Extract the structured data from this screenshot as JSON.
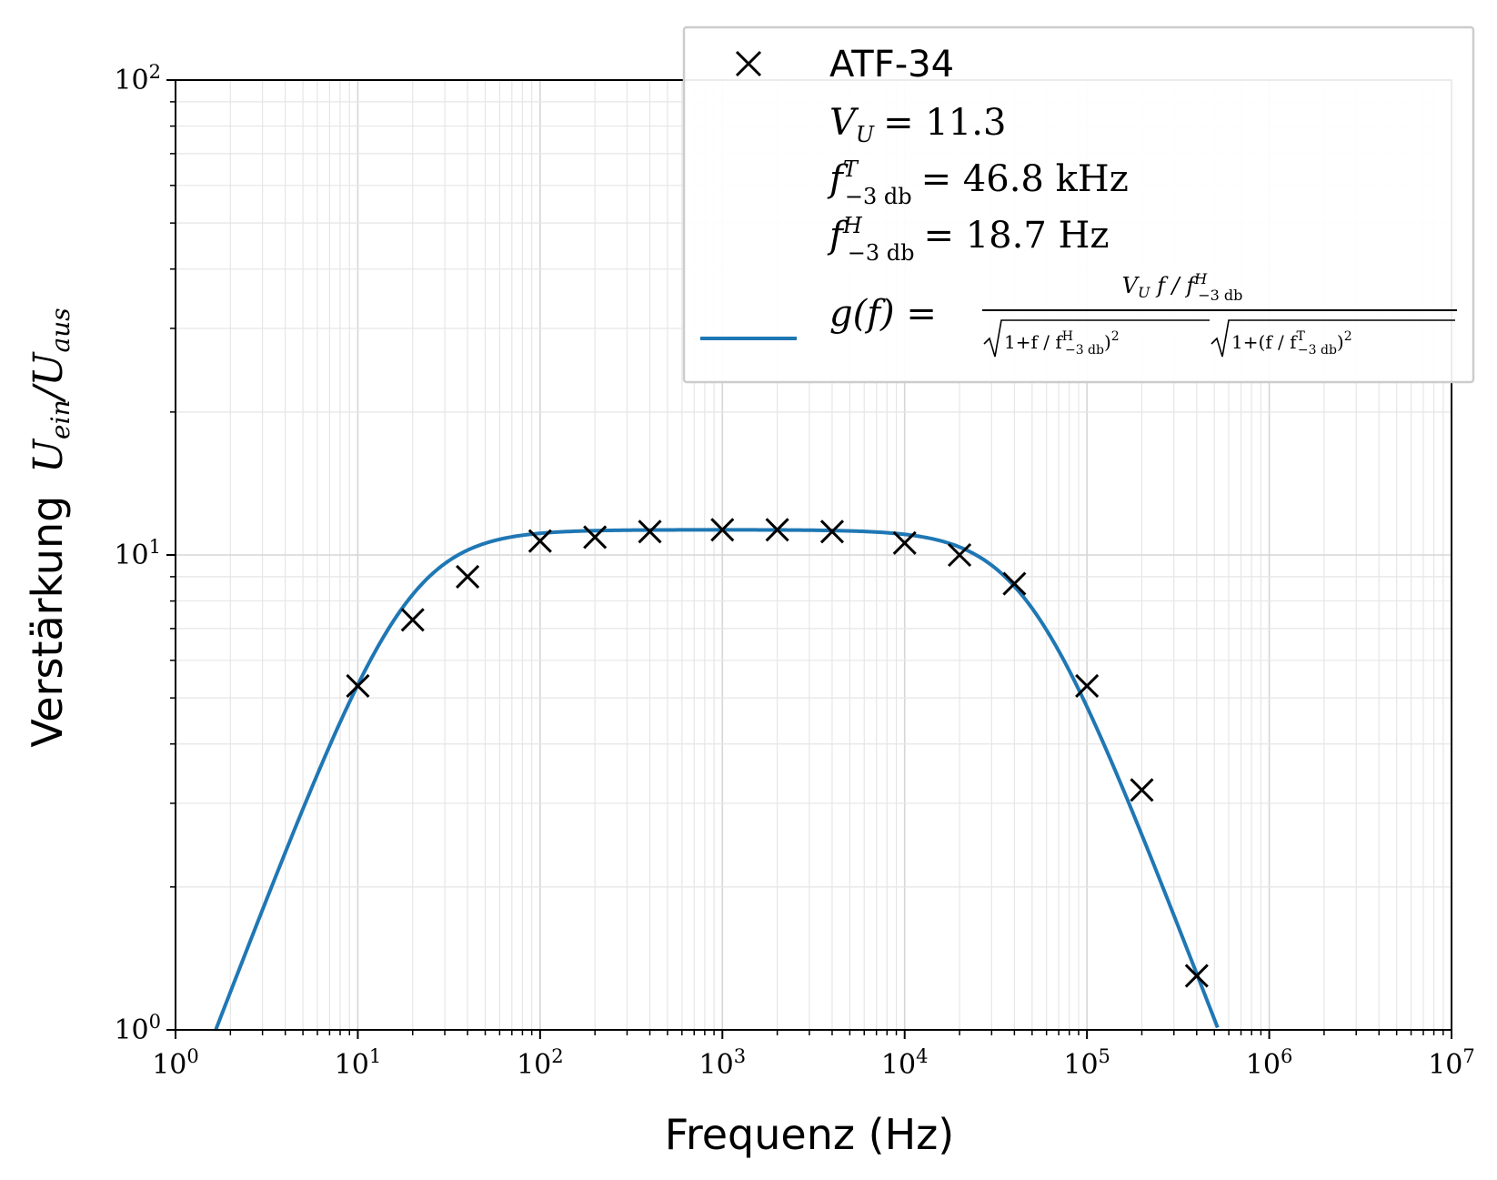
{
  "chart_data": {
    "type": "scatter",
    "xscale": "log",
    "yscale": "log",
    "xlim": [
      1,
      10000000
    ],
    "ylim": [
      1,
      100
    ],
    "grid": "major and minor",
    "legend_position": "top-right",
    "xlabel": "Frequenz (Hz)",
    "ylabel_prefix": "Verstärkung",
    "ylabel_math": "U_ein/U_aus",
    "x_tick_values": [
      1,
      10,
      100,
      1000,
      10000,
      100000,
      1000000,
      10000000
    ],
    "x_tick_labels": [
      {
        "base": "10",
        "exp": "0"
      },
      {
        "base": "10",
        "exp": "1"
      },
      {
        "base": "10",
        "exp": "2"
      },
      {
        "base": "10",
        "exp": "3"
      },
      {
        "base": "10",
        "exp": "4"
      },
      {
        "base": "10",
        "exp": "5"
      },
      {
        "base": "10",
        "exp": "6"
      },
      {
        "base": "10",
        "exp": "7"
      }
    ],
    "y_tick_values": [
      1,
      10,
      100
    ],
    "y_tick_labels": [
      {
        "base": "10",
        "exp": "0"
      },
      {
        "base": "10",
        "exp": "1"
      },
      {
        "base": "10",
        "exp": "2"
      }
    ],
    "series": [
      {
        "name": "ATF-34",
        "kind": "scatter",
        "marker": "x",
        "color": "#000000",
        "x": [
          10,
          20,
          40,
          100,
          200,
          400,
          1000,
          2000,
          4000,
          10000,
          20000,
          40000,
          100000,
          200000,
          400000
        ],
        "y": [
          5.3,
          7.3,
          9.0,
          10.7,
          10.9,
          11.2,
          11.3,
          11.3,
          11.2,
          10.6,
          10.0,
          8.7,
          5.3,
          3.2,
          1.3
        ]
      },
      {
        "kind": "line",
        "color": "#1f77b4",
        "function": "g(f) = V_U (f/f_H) / ( sqrt(1+(f/f_H)^2) * sqrt(1+(f/f_T)^2) )",
        "params": {
          "V_U": 11.3,
          "f_T_Hz": 46800,
          "f_H_Hz": 18.7
        }
      }
    ],
    "legend": {
      "marker_label": "ATF-34",
      "param_vu": "= 11.3",
      "param_ft": "= 46.8 kHz",
      "param_fh": "= 18.7 Hz",
      "fit_label": "g(f) ="
    }
  }
}
